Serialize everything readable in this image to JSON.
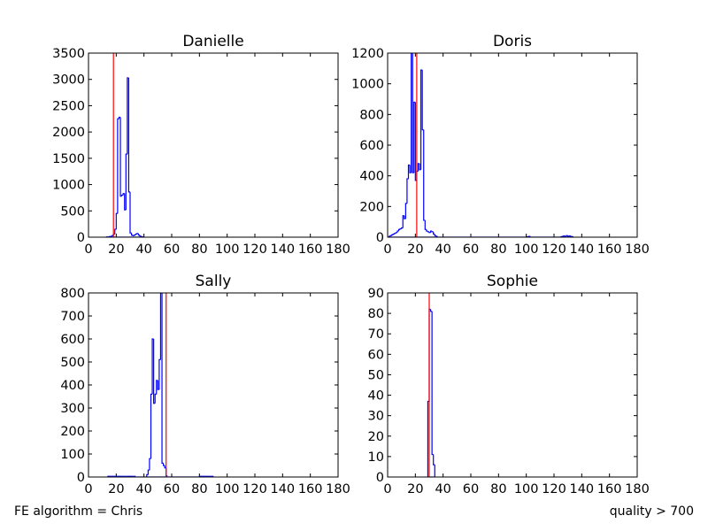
{
  "footer": {
    "left_text": "FE algorithm = Chris",
    "right_text": "quality > 700"
  },
  "colors": {
    "histogram": "#0000ff",
    "marker_line": "#ff0000",
    "axes": "#000000"
  },
  "chart_data": [
    {
      "type": "histogram",
      "title": "Danielle",
      "xlim": [
        0,
        180
      ],
      "ylim": [
        0,
        3500
      ],
      "xticks": [
        0,
        20,
        40,
        60,
        80,
        100,
        120,
        140,
        160,
        180
      ],
      "yticks": [
        0,
        500,
        1000,
        1500,
        2000,
        2500,
        3000,
        3500
      ],
      "vline_x": 18,
      "bin_width": 1,
      "bins": [
        [
          13,
          5
        ],
        [
          14,
          5
        ],
        [
          15,
          10
        ],
        [
          16,
          15
        ],
        [
          17,
          30
        ],
        [
          18,
          60
        ],
        [
          19,
          150
        ],
        [
          20,
          450
        ],
        [
          21,
          2250
        ],
        [
          22,
          2280
        ],
        [
          23,
          780
        ],
        [
          24,
          800
        ],
        [
          25,
          830
        ],
        [
          26,
          520
        ],
        [
          27,
          1580
        ],
        [
          28,
          3030
        ],
        [
          29,
          860
        ],
        [
          30,
          80
        ],
        [
          31,
          40
        ],
        [
          32,
          30
        ],
        [
          33,
          40
        ],
        [
          34,
          60
        ],
        [
          35,
          70
        ],
        [
          36,
          40
        ],
        [
          37,
          20
        ],
        [
          38,
          10
        ],
        [
          39,
          5
        ]
      ]
    },
    {
      "type": "histogram",
      "title": "Doris",
      "xlim": [
        0,
        180
      ],
      "ylim": [
        0,
        1200
      ],
      "xticks": [
        0,
        20,
        40,
        60,
        80,
        100,
        120,
        140,
        160,
        180
      ],
      "yticks": [
        0,
        200,
        400,
        600,
        800,
        1000,
        1200
      ],
      "vline_x": 21,
      "bin_width": 1,
      "bins": [
        [
          1,
          5
        ],
        [
          2,
          10
        ],
        [
          3,
          15
        ],
        [
          4,
          20
        ],
        [
          5,
          25
        ],
        [
          6,
          30
        ],
        [
          7,
          40
        ],
        [
          8,
          50
        ],
        [
          9,
          55
        ],
        [
          10,
          60
        ],
        [
          11,
          140
        ],
        [
          12,
          120
        ],
        [
          13,
          220
        ],
        [
          14,
          380
        ],
        [
          15,
          470
        ],
        [
          16,
          420
        ],
        [
          17,
          1200
        ],
        [
          18,
          420
        ],
        [
          19,
          880
        ],
        [
          20,
          370
        ],
        [
          21,
          430
        ],
        [
          22,
          480
        ],
        [
          23,
          440
        ],
        [
          24,
          1090
        ],
        [
          25,
          700
        ],
        [
          26,
          110
        ],
        [
          27,
          50
        ],
        [
          28,
          40
        ],
        [
          29,
          35
        ],
        [
          30,
          30
        ],
        [
          31,
          40
        ],
        [
          32,
          35
        ],
        [
          33,
          20
        ],
        [
          34,
          10
        ],
        [
          35,
          5
        ],
        [
          100,
          3
        ],
        [
          101,
          3
        ],
        [
          102,
          5
        ],
        [
          125,
          3
        ],
        [
          126,
          5
        ],
        [
          127,
          8
        ],
        [
          128,
          5
        ],
        [
          129,
          10
        ],
        [
          130,
          5
        ],
        [
          131,
          8
        ],
        [
          132,
          5
        ],
        [
          133,
          3
        ]
      ]
    },
    {
      "type": "histogram",
      "title": "Sally",
      "xlim": [
        0,
        180
      ],
      "ylim": [
        0,
        800
      ],
      "xticks": [
        0,
        20,
        40,
        60,
        80,
        100,
        120,
        140,
        160,
        180
      ],
      "yticks": [
        0,
        100,
        200,
        300,
        400,
        500,
        600,
        700,
        800
      ],
      "vline_x": 56,
      "bin_width": 1,
      "bins": [
        [
          14,
          3
        ],
        [
          15,
          3
        ],
        [
          16,
          3
        ],
        [
          17,
          3
        ],
        [
          18,
          3
        ],
        [
          19,
          3
        ],
        [
          20,
          3
        ],
        [
          21,
          3
        ],
        [
          22,
          3
        ],
        [
          23,
          3
        ],
        [
          24,
          3
        ],
        [
          25,
          3
        ],
        [
          26,
          3
        ],
        [
          27,
          3
        ],
        [
          28,
          3
        ],
        [
          29,
          3
        ],
        [
          30,
          3
        ],
        [
          31,
          3
        ],
        [
          32,
          3
        ],
        [
          33,
          3
        ],
        [
          42,
          10
        ],
        [
          43,
          30
        ],
        [
          44,
          80
        ],
        [
          45,
          360
        ],
        [
          46,
          600
        ],
        [
          47,
          320
        ],
        [
          48,
          360
        ],
        [
          49,
          420
        ],
        [
          50,
          380
        ],
        [
          51,
          510
        ],
        [
          52,
          800
        ],
        [
          53,
          60
        ],
        [
          54,
          50
        ],
        [
          55,
          40
        ],
        [
          56,
          5
        ],
        [
          80,
          3
        ],
        [
          81,
          3
        ],
        [
          82,
          3
        ],
        [
          83,
          3
        ],
        [
          84,
          3
        ],
        [
          85,
          3
        ],
        [
          86,
          3
        ],
        [
          87,
          3
        ],
        [
          88,
          3
        ],
        [
          89,
          3
        ]
      ]
    },
    {
      "type": "histogram",
      "title": "Sophie",
      "xlim": [
        0,
        180
      ],
      "ylim": [
        0,
        90
      ],
      "xticks": [
        0,
        20,
        40,
        60,
        80,
        100,
        120,
        140,
        160,
        180
      ],
      "yticks": [
        0,
        10,
        20,
        30,
        40,
        50,
        60,
        70,
        80,
        90
      ],
      "vline_x": 30,
      "bin_width": 1,
      "bins": [
        [
          29,
          37
        ],
        [
          30,
          82
        ],
        [
          31,
          81
        ],
        [
          32,
          11
        ],
        [
          33,
          6
        ]
      ]
    }
  ]
}
